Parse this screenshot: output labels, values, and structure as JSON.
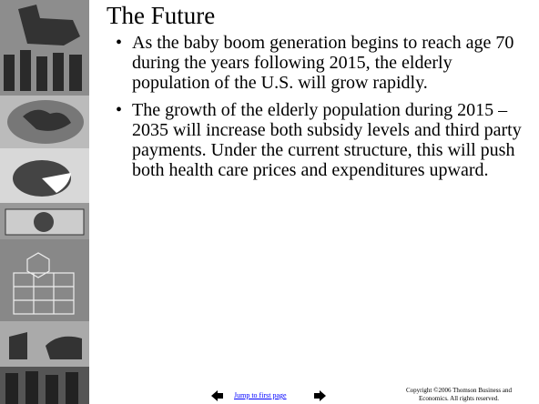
{
  "slide": {
    "title": "The Future",
    "bullets": [
      "As the baby boom generation begins to reach age 70 during the years following 2015, the elderly population of the U.S. will grow rapidly.",
      "The growth of the elderly population during 2015 – 2035 will increase both subsidy levels and third party payments. Under the current structure, this will push both health care prices and expenditures upward."
    ],
    "footer": {
      "link": "Jump to first page",
      "copyright": [
        "Copyright ©2006  Thomson Business and",
        "Economics. All rights reserved."
      ]
    }
  }
}
